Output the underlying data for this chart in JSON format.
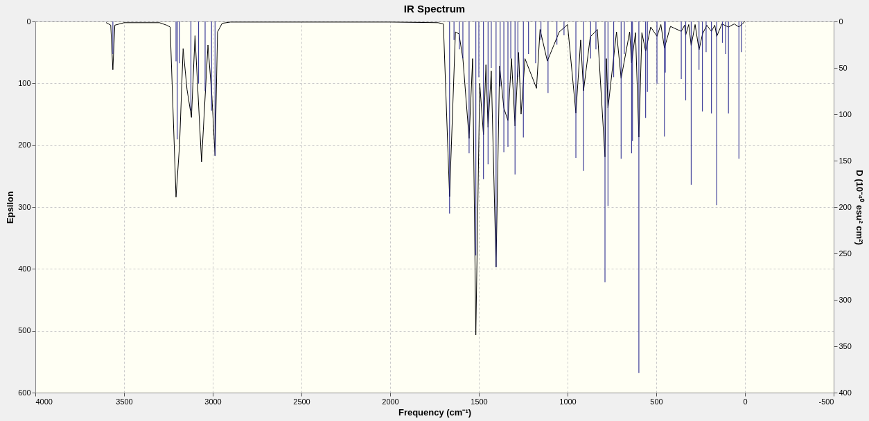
{
  "chart_data": {
    "type": "line",
    "title": "IR Spectrum",
    "xlabel": "Frequency (cm⁻¹)",
    "ylabel": "Epsilon",
    "y2label": "D (10⁻⁴⁰ esu² cm²)",
    "xlim": [
      4000,
      -500
    ],
    "xticks": [
      4000,
      3500,
      3000,
      2500,
      2000,
      1500,
      1000,
      500,
      0,
      -500
    ],
    "ylim": [
      600,
      0
    ],
    "yticks": [
      0,
      100,
      200,
      300,
      400,
      500,
      600
    ],
    "y2lim": [
      400,
      0
    ],
    "y2ticks": [
      0,
      50,
      100,
      150,
      200,
      250,
      300,
      350,
      400
    ],
    "grid": true,
    "series": [
      {
        "color": "#000000",
        "x": [
          3600,
          3575,
          3563,
          3552,
          3500,
          3300,
          3260,
          3240,
          3207,
          3187,
          3167,
          3145,
          3120,
          3100,
          3063,
          3027,
          3005,
          2987,
          2973,
          2947,
          2900,
          2000,
          1730,
          1700,
          1665,
          1632,
          1612,
          1590,
          1555,
          1535,
          1517,
          1495,
          1474,
          1460,
          1448,
          1430,
          1403,
          1383,
          1359,
          1336,
          1316,
          1296,
          1276,
          1262,
          1240,
          1175,
          1155,
          1114,
          1047,
          1000,
          953,
          926,
          910,
          872,
          832,
          789,
          781,
          772,
          724,
          698,
          650,
          639,
          617,
          598,
          581,
          560,
          531,
          496,
          474,
          454,
          420,
          359,
          340,
          334,
          317,
          303,
          281,
          259,
          239,
          215,
          189,
          170,
          159,
          130,
          93,
          60,
          34,
          15,
          0
        ],
        "values": [
          2,
          6,
          78,
          6,
          2,
          2,
          6,
          9,
          284,
          199,
          44,
          110,
          155,
          23,
          227,
          38,
          120,
          217,
          17,
          3,
          1,
          1,
          2,
          4,
          283,
          17,
          20,
          60,
          189,
          60,
          507,
          100,
          183,
          70,
          171,
          80,
          397,
          72,
          140,
          160,
          60,
          169,
          50,
          150,
          60,
          108,
          13,
          64,
          17,
          5,
          148,
          30,
          112,
          25,
          13,
          219,
          60,
          140,
          17,
          92,
          17,
          67,
          18,
          187,
          18,
          48,
          9,
          24,
          5,
          43,
          8,
          16,
          6,
          22,
          5,
          39,
          5,
          46,
          20,
          6,
          16,
          6,
          24,
          4,
          9,
          4,
          9,
          4,
          0
        ]
      },
      {
        "type": "bar",
        "axis": "y2",
        "color": "#1f1f8a",
        "x": [
          3563,
          3207,
          3200,
          3187,
          3123,
          3080,
          3043,
          3007,
          2987,
          1665,
          1640,
          1610,
          1590,
          1555,
          1517,
          1500,
          1474,
          1448,
          1430,
          1403,
          1380,
          1359,
          1336,
          1320,
          1296,
          1280,
          1249,
          1220,
          1180,
          1150,
          1110,
          1060,
          1020,
          953,
          910,
          870,
          840,
          789,
          772,
          740,
          698,
          680,
          639,
          634,
          598,
          560,
          550,
          496,
          454,
          449,
          359,
          334,
          303,
          259,
          240,
          219,
          189,
          159,
          127,
          109,
          93,
          34,
          19
        ],
        "values": [
          35,
          43,
          127,
          45,
          96,
          67,
          75,
          96,
          145,
          207,
          20,
          30,
          40,
          142,
          252,
          60,
          170,
          154,
          50,
          265,
          70,
          141,
          135,
          40,
          165,
          60,
          125,
          35,
          45,
          20,
          77,
          25,
          15,
          147,
          161,
          40,
          30,
          281,
          199,
          60,
          148,
          35,
          142,
          129,
          379,
          104,
          76,
          67,
          124,
          55,
          62,
          85,
          176,
          52,
          97,
          33,
          99,
          198,
          23,
          35,
          99,
          148,
          33
        ]
      }
    ]
  }
}
